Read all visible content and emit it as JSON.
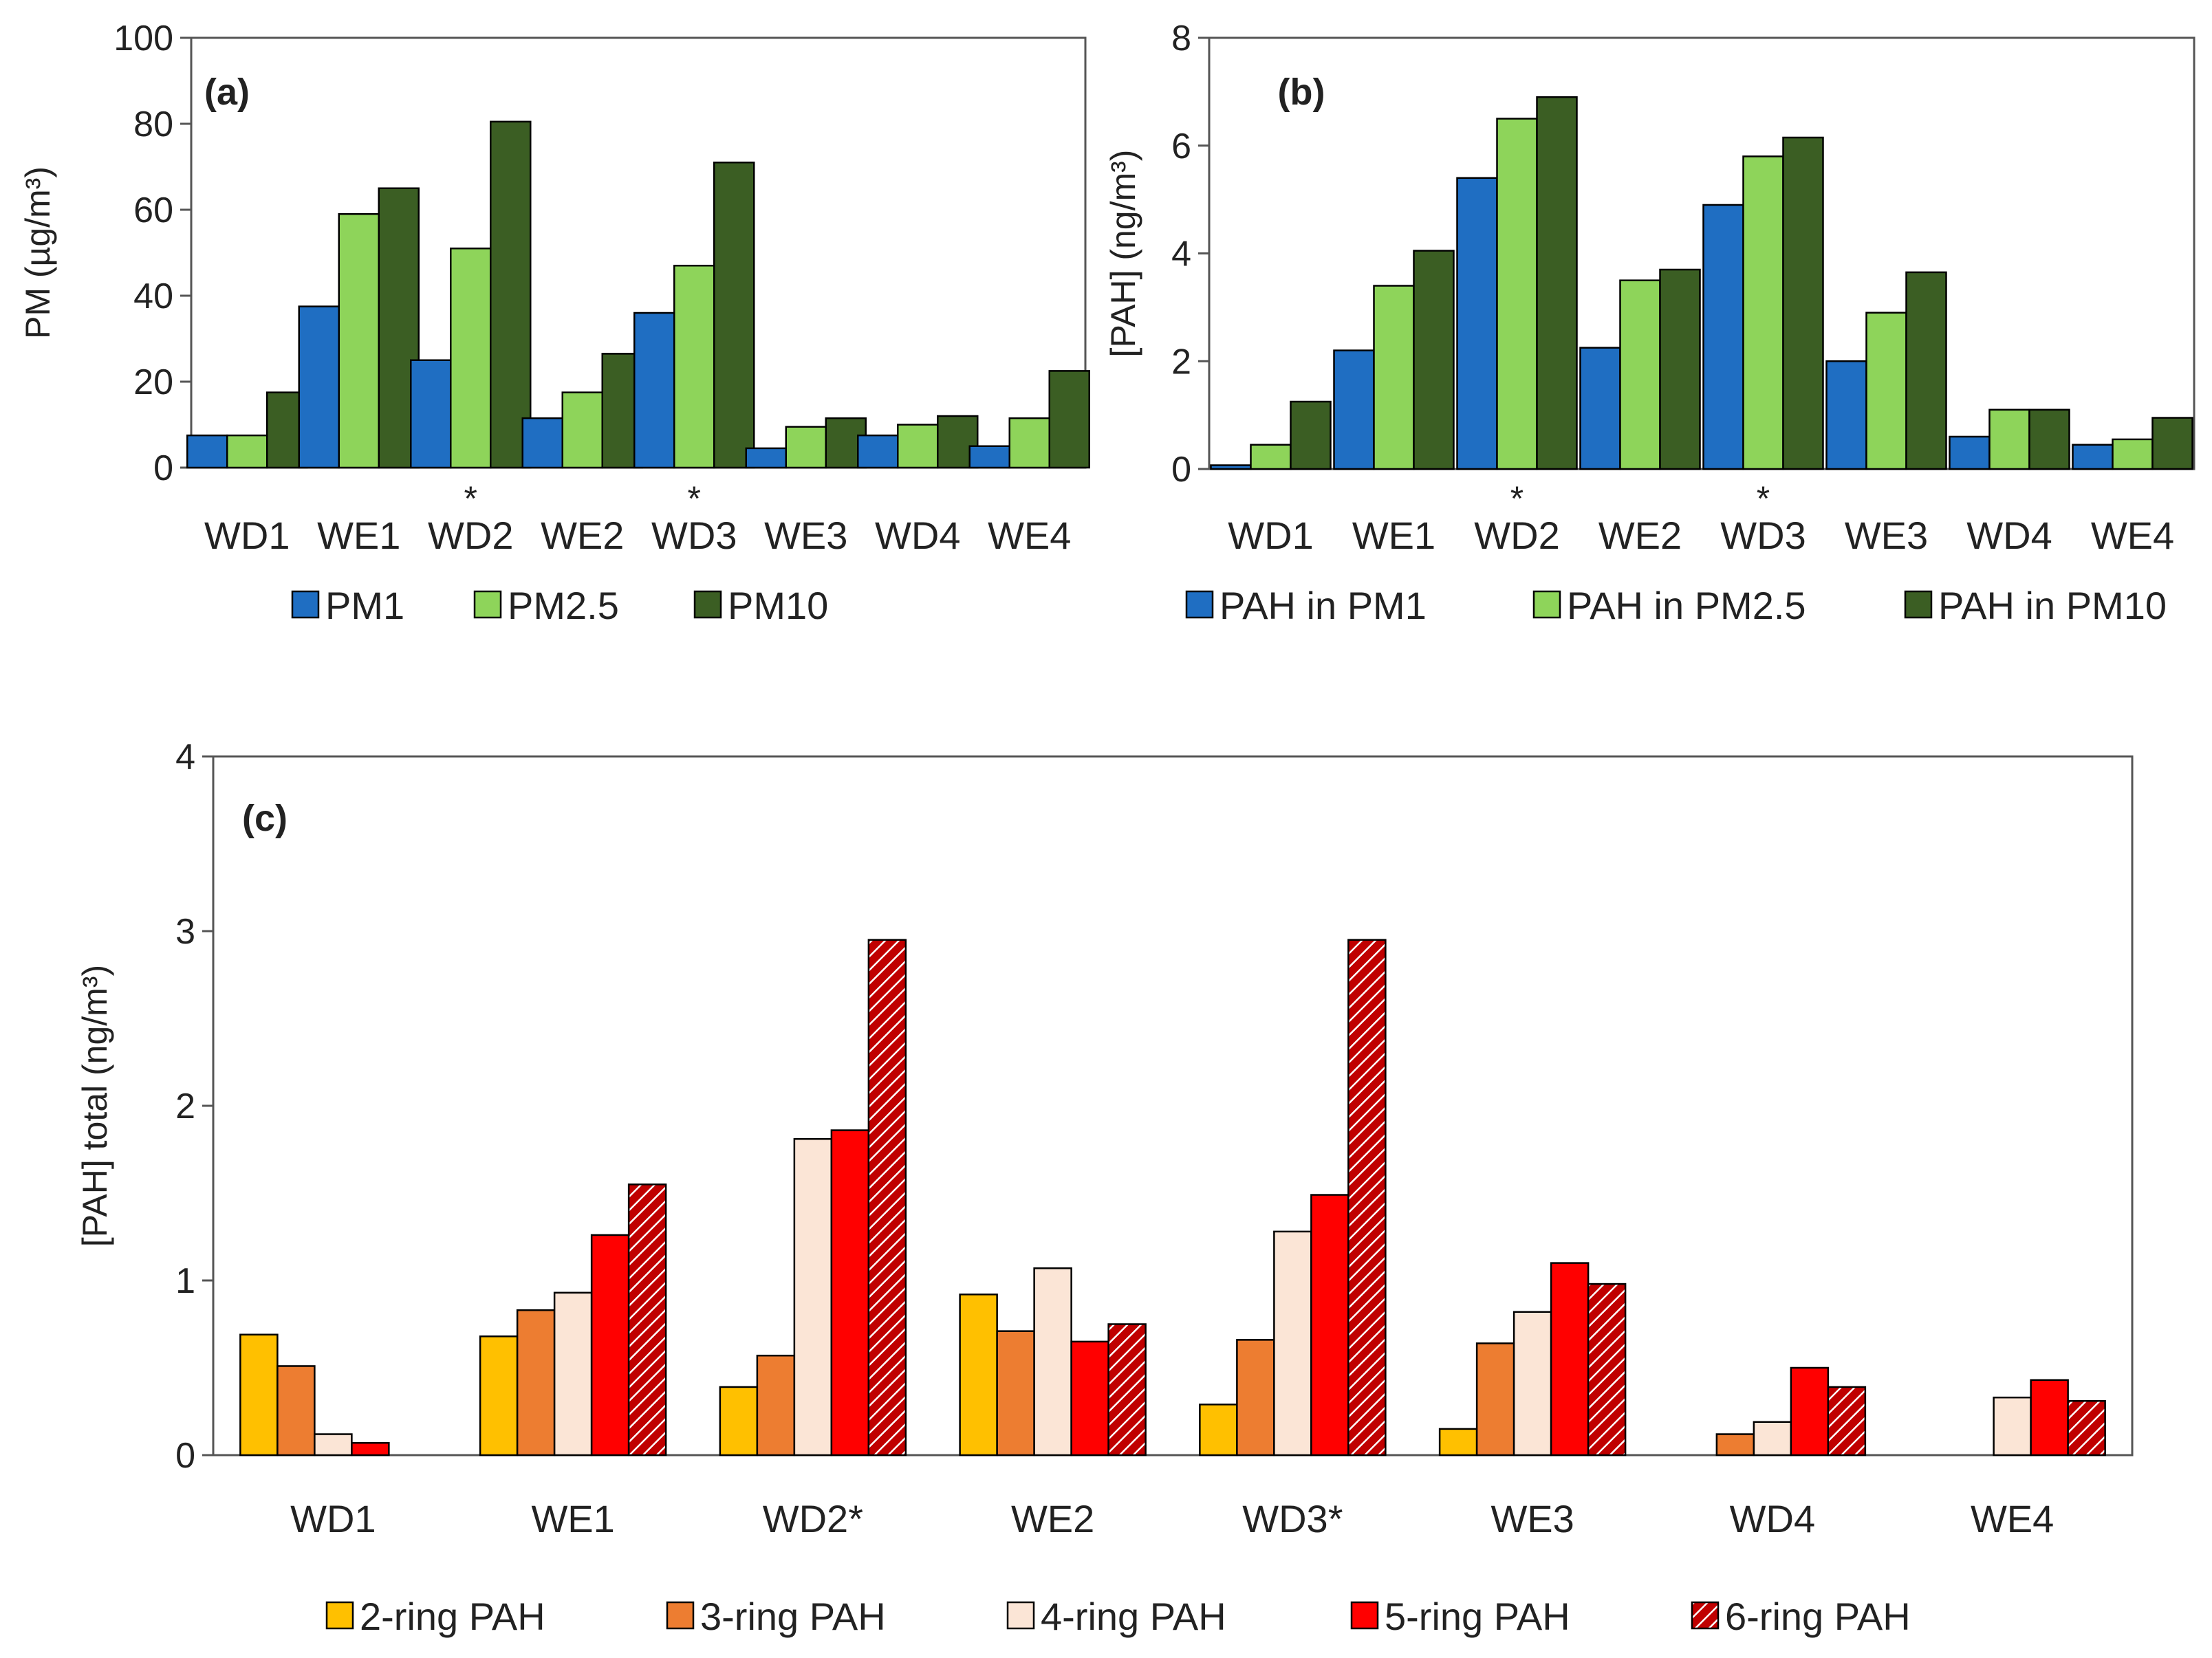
{
  "chart_data": [
    {
      "id": "a",
      "type": "bar",
      "panel_label": "(a)",
      "ylabel": "PM (µg/m³)",
      "ylim": [
        0,
        100
      ],
      "yticks": [
        "0",
        "20",
        "40",
        "60",
        "80",
        "100"
      ],
      "categories": [
        "WD1",
        "WE1",
        "WD2",
        "WE2",
        "WD3",
        "WE3",
        "WD4",
        "WE4"
      ],
      "starred": [
        false,
        false,
        true,
        false,
        true,
        false,
        false,
        false
      ],
      "star_symbol": "*",
      "series": [
        {
          "name": "PM1",
          "color": "#1f6ec2",
          "values": [
            7.5,
            37.5,
            25,
            11.5,
            36,
            4.5,
            7.5,
            5
          ]
        },
        {
          "name": "PM2.5",
          "color": "#8ed45a",
          "values": [
            7.5,
            59,
            51,
            17.5,
            47,
            9.5,
            10,
            11.5
          ]
        },
        {
          "name": "PM10",
          "color": "#3b5e23",
          "values": [
            17.5,
            65,
            80.5,
            26.5,
            71,
            11.5,
            12,
            22.5
          ]
        }
      ],
      "legend_position": "bottom"
    },
    {
      "id": "b",
      "type": "bar",
      "panel_label": "(b)",
      "ylabel": "[PAH] (ng/m³)",
      "ylim": [
        0,
        8
      ],
      "yticks": [
        "0",
        "2",
        "4",
        "6",
        "8"
      ],
      "categories": [
        "WD1",
        "WE1",
        "WD2",
        "WE2",
        "WD3",
        "WE3",
        "WD4",
        "WE4"
      ],
      "starred": [
        false,
        false,
        true,
        false,
        true,
        false,
        false,
        false
      ],
      "star_symbol": "*",
      "series": [
        {
          "name": "PAH in PM1",
          "color": "#1f6ec2",
          "values": [
            0.07,
            2.2,
            5.4,
            2.25,
            4.9,
            2.0,
            0.6,
            0.45
          ]
        },
        {
          "name": "PAH in PM2.5",
          "color": "#8ed45a",
          "values": [
            0.45,
            3.4,
            6.5,
            3.5,
            5.8,
            2.9,
            1.1,
            0.55
          ]
        },
        {
          "name": "PAH in PM10",
          "color": "#3b5e23",
          "values": [
            1.25,
            4.05,
            6.9,
            3.7,
            6.15,
            3.65,
            1.1,
            0.95
          ]
        }
      ],
      "legend_position": "bottom"
    },
    {
      "id": "c",
      "type": "bar",
      "panel_label": "(c)",
      "ylabel": "[PAH] total (ng/m³)",
      "ylim": [
        0,
        4
      ],
      "yticks": [
        "0",
        "1",
        "2",
        "3",
        "4"
      ],
      "categories": [
        "WD1",
        "WE1",
        "WD2*",
        "WE2",
        "WD3*",
        "WE3",
        "WD4",
        "WE4"
      ],
      "series": [
        {
          "name": "2-ring PAH",
          "color": "#ffc000",
          "values": [
            0.69,
            0.68,
            0.39,
            0.92,
            0.29,
            0.15,
            0,
            0
          ]
        },
        {
          "name": "3-ring PAH",
          "color": "#ed7d31",
          "values": [
            0.51,
            0.83,
            0.57,
            0.71,
            0.66,
            0.64,
            0.12,
            0
          ]
        },
        {
          "name": "4-ring PAH",
          "color": "#fbe5d6",
          "values": [
            0.12,
            0.93,
            1.81,
            1.07,
            1.28,
            0.82,
            0.19,
            0.33
          ]
        },
        {
          "name": "5-ring PAH",
          "color": "#ff0000",
          "values": [
            0.07,
            1.26,
            1.86,
            0.65,
            1.49,
            1.1,
            0.5,
            0.43
          ]
        },
        {
          "name": "6-ring PAH",
          "color": "#c00000",
          "pattern": "hatch",
          "values": [
            0,
            1.55,
            2.95,
            0.75,
            2.95,
            0.98,
            0.39,
            0.31
          ]
        }
      ],
      "legend_position": "bottom"
    }
  ]
}
